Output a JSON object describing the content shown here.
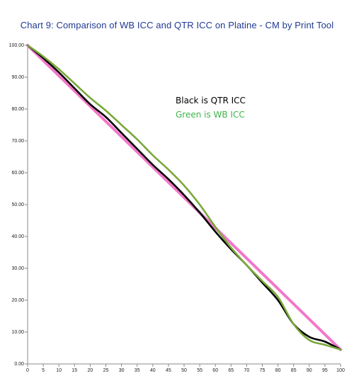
{
  "chart_data": {
    "type": "line",
    "title": "Chart 9:  Comparison of WB ICC and QTR ICC on Platine - CM by Print Tool",
    "xlim": [
      0,
      100
    ],
    "ylim": [
      0,
      100
    ],
    "x_ticks": [
      0,
      5,
      10,
      15,
      20,
      25,
      30,
      35,
      40,
      45,
      50,
      55,
      60,
      65,
      70,
      75,
      80,
      85,
      90,
      95,
      100
    ],
    "y_ticks": [
      "0.00",
      "10.00",
      "20.00",
      "30.00",
      "40.00",
      "50.00",
      "60.00",
      "70.00",
      "80.00",
      "90.00",
      "100.00"
    ],
    "grid": false,
    "annotations": [
      {
        "text": "Black is QTR ICC",
        "color": "#000000"
      },
      {
        "text": "Green is WB ICC",
        "color": "#3db54a"
      }
    ],
    "series": [
      {
        "color": "#f277c8",
        "x": [
          0,
          100
        ],
        "y": [
          100,
          4.5
        ]
      },
      {
        "color": "#000000",
        "x": [
          0,
          5,
          10,
          15,
          20,
          25,
          30,
          35,
          40,
          45,
          50,
          55,
          60,
          65,
          70,
          75,
          80,
          85,
          90,
          95,
          100
        ],
        "y": [
          100,
          96,
          91.5,
          86.5,
          81.5,
          77.5,
          72.5,
          67.5,
          62.5,
          58,
          53,
          47.5,
          41.5,
          36,
          31,
          25.5,
          20,
          12.5,
          8.5,
          7,
          4.5
        ]
      },
      {
        "color": "#7aa83a",
        "x": [
          0,
          5,
          10,
          15,
          20,
          25,
          30,
          35,
          40,
          45,
          50,
          55,
          60,
          65,
          70,
          75,
          80,
          85,
          90,
          95,
          100
        ],
        "y": [
          100,
          96.5,
          92.5,
          88,
          83.5,
          79.5,
          75,
          70.5,
          65.5,
          61,
          56,
          50,
          43,
          36.5,
          31,
          26,
          21,
          12.5,
          7.5,
          6,
          4.5
        ]
      }
    ]
  }
}
